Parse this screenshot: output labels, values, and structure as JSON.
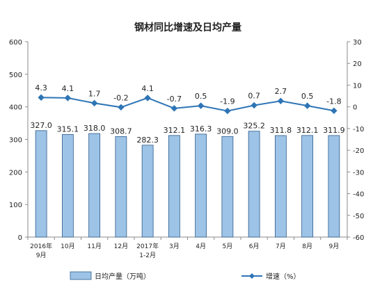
{
  "chart_data": {
    "type": "bar+line",
    "title": "钢材同比增速及日均产量",
    "categories": [
      "2016年\n9月",
      "10月",
      "11月",
      "12月",
      "2017年\n1-2月",
      "3月",
      "4月",
      "5月",
      "6月",
      "7月",
      "8月",
      "9月"
    ],
    "series": [
      {
        "name": "日均产量（万吨）",
        "type": "bar",
        "axis": "left",
        "values": [
          327.0,
          315.1,
          318.0,
          308.7,
          282.3,
          312.1,
          316.3,
          309.0,
          325.2,
          311.8,
          312.1,
          311.9
        ],
        "color": "#9DC3E6"
      },
      {
        "name": "增速（%）",
        "type": "line",
        "axis": "right",
        "values": [
          4.3,
          4.1,
          1.7,
          -0.2,
          4.1,
          -0.7,
          0.5,
          -1.9,
          0.7,
          2.7,
          0.5,
          -1.8
        ],
        "color": "#2E75B6"
      }
    ],
    "y_left": {
      "min": 0,
      "max": 600,
      "ticks": [
        0,
        100,
        200,
        300,
        400,
        500,
        600
      ]
    },
    "y_right": {
      "min": -60,
      "max": 30,
      "ticks": [
        30,
        20,
        10,
        0,
        -10,
        -20,
        -30,
        -40,
        -50,
        -60
      ]
    },
    "legend_position": "bottom",
    "grid": false
  }
}
